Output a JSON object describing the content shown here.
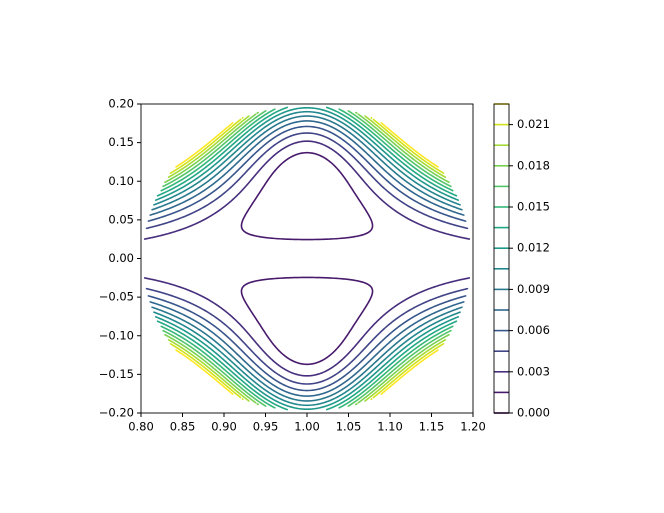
{
  "chart_data": {
    "type": "contour",
    "xlim": [
      0.8,
      1.2
    ],
    "ylim": [
      -0.2,
      0.2
    ],
    "xticks": [
      {
        "value": 0.8,
        "label": "0.80"
      },
      {
        "value": 0.85,
        "label": "0.85"
      },
      {
        "value": 0.9,
        "label": "0.90"
      },
      {
        "value": 0.95,
        "label": "0.95"
      },
      {
        "value": 1.0,
        "label": "1.00"
      },
      {
        "value": 1.05,
        "label": "1.05"
      },
      {
        "value": 1.1,
        "label": "1.10"
      },
      {
        "value": 1.15,
        "label": "1.15"
      },
      {
        "value": 1.2,
        "label": "1.20"
      }
    ],
    "yticks": [
      {
        "value": -0.2,
        "label": "−0.20"
      },
      {
        "value": -0.15,
        "label": "−0.15"
      },
      {
        "value": -0.1,
        "label": "−0.10"
      },
      {
        "value": -0.05,
        "label": "−0.05"
      },
      {
        "value": 0,
        "label": "0.00"
      },
      {
        "value": 0.05,
        "label": "0.05"
      },
      {
        "value": 0.1,
        "label": "0.10"
      },
      {
        "value": 0.15,
        "label": "0.15"
      },
      {
        "value": 0.2,
        "label": "0.20"
      }
    ],
    "levels": [
      0,
      0.0015,
      0.003,
      0.0045,
      0.006,
      0.0075,
      0.009,
      0.0105,
      0.012,
      0.0135,
      0.015,
      0.0165,
      0.018,
      0.0195,
      0.021,
      0.0225
    ],
    "colors": [
      "#440154",
      "#481a6c",
      "#472f7d",
      "#414487",
      "#39568c",
      "#31688e",
      "#2a788e",
      "#23888e",
      "#1f988b",
      "#22a884",
      "#35b779",
      "#54c568",
      "#7ad151",
      "#a5db36",
      "#d2e21b",
      "#fde725"
    ],
    "colorbar_ticks": [
      {
        "value": 0,
        "label": "0.000"
      },
      {
        "value": 0.003,
        "label": "0.003"
      },
      {
        "value": 0.006,
        "label": "0.006"
      },
      {
        "value": 0.009,
        "label": "0.009"
      },
      {
        "value": 0.012,
        "label": "0.012"
      },
      {
        "value": 0.015,
        "label": "0.015"
      },
      {
        "value": 0.018,
        "label": "0.018"
      },
      {
        "value": 0.021,
        "label": "0.021"
      }
    ]
  }
}
